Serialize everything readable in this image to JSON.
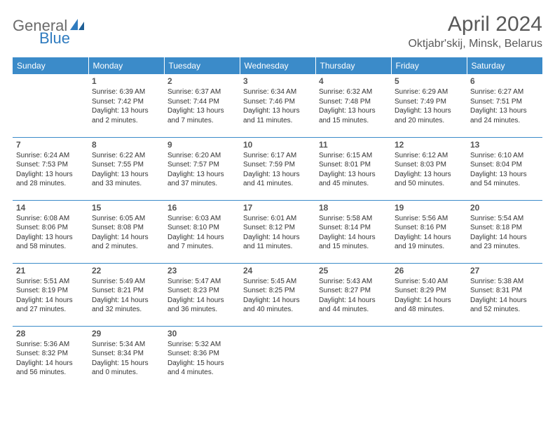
{
  "logo": {
    "part1": "General",
    "part2": "Blue"
  },
  "title": "April 2024",
  "location": "Oktjabr'skij, Minsk, Belarus",
  "colors": {
    "header_bg": "#3b8bc9",
    "header_text": "#ffffff",
    "body_text": "#333333",
    "title_text": "#595959",
    "logo_gray": "#6b6b6b",
    "logo_blue": "#2f7bbf",
    "rule": "#3b8bc9",
    "page_bg": "#ffffff"
  },
  "typography": {
    "title_fontsize": 30,
    "location_fontsize": 16,
    "dayheader_fontsize": 12,
    "daynum_fontsize": 12,
    "cell_fontsize": 10,
    "font_family": "Arial"
  },
  "headers": [
    "Sunday",
    "Monday",
    "Tuesday",
    "Wednesday",
    "Thursday",
    "Friday",
    "Saturday"
  ],
  "weeks": [
    [
      null,
      {
        "n": "1",
        "sr": "Sunrise: 6:39 AM",
        "ss": "Sunset: 7:42 PM",
        "d1": "Daylight: 13 hours",
        "d2": "and 2 minutes."
      },
      {
        "n": "2",
        "sr": "Sunrise: 6:37 AM",
        "ss": "Sunset: 7:44 PM",
        "d1": "Daylight: 13 hours",
        "d2": "and 7 minutes."
      },
      {
        "n": "3",
        "sr": "Sunrise: 6:34 AM",
        "ss": "Sunset: 7:46 PM",
        "d1": "Daylight: 13 hours",
        "d2": "and 11 minutes."
      },
      {
        "n": "4",
        "sr": "Sunrise: 6:32 AM",
        "ss": "Sunset: 7:48 PM",
        "d1": "Daylight: 13 hours",
        "d2": "and 15 minutes."
      },
      {
        "n": "5",
        "sr": "Sunrise: 6:29 AM",
        "ss": "Sunset: 7:49 PM",
        "d1": "Daylight: 13 hours",
        "d2": "and 20 minutes."
      },
      {
        "n": "6",
        "sr": "Sunrise: 6:27 AM",
        "ss": "Sunset: 7:51 PM",
        "d1": "Daylight: 13 hours",
        "d2": "and 24 minutes."
      }
    ],
    [
      {
        "n": "7",
        "sr": "Sunrise: 6:24 AM",
        "ss": "Sunset: 7:53 PM",
        "d1": "Daylight: 13 hours",
        "d2": "and 28 minutes."
      },
      {
        "n": "8",
        "sr": "Sunrise: 6:22 AM",
        "ss": "Sunset: 7:55 PM",
        "d1": "Daylight: 13 hours",
        "d2": "and 33 minutes."
      },
      {
        "n": "9",
        "sr": "Sunrise: 6:20 AM",
        "ss": "Sunset: 7:57 PM",
        "d1": "Daylight: 13 hours",
        "d2": "and 37 minutes."
      },
      {
        "n": "10",
        "sr": "Sunrise: 6:17 AM",
        "ss": "Sunset: 7:59 PM",
        "d1": "Daylight: 13 hours",
        "d2": "and 41 minutes."
      },
      {
        "n": "11",
        "sr": "Sunrise: 6:15 AM",
        "ss": "Sunset: 8:01 PM",
        "d1": "Daylight: 13 hours",
        "d2": "and 45 minutes."
      },
      {
        "n": "12",
        "sr": "Sunrise: 6:12 AM",
        "ss": "Sunset: 8:03 PM",
        "d1": "Daylight: 13 hours",
        "d2": "and 50 minutes."
      },
      {
        "n": "13",
        "sr": "Sunrise: 6:10 AM",
        "ss": "Sunset: 8:04 PM",
        "d1": "Daylight: 13 hours",
        "d2": "and 54 minutes."
      }
    ],
    [
      {
        "n": "14",
        "sr": "Sunrise: 6:08 AM",
        "ss": "Sunset: 8:06 PM",
        "d1": "Daylight: 13 hours",
        "d2": "and 58 minutes."
      },
      {
        "n": "15",
        "sr": "Sunrise: 6:05 AM",
        "ss": "Sunset: 8:08 PM",
        "d1": "Daylight: 14 hours",
        "d2": "and 2 minutes."
      },
      {
        "n": "16",
        "sr": "Sunrise: 6:03 AM",
        "ss": "Sunset: 8:10 PM",
        "d1": "Daylight: 14 hours",
        "d2": "and 7 minutes."
      },
      {
        "n": "17",
        "sr": "Sunrise: 6:01 AM",
        "ss": "Sunset: 8:12 PM",
        "d1": "Daylight: 14 hours",
        "d2": "and 11 minutes."
      },
      {
        "n": "18",
        "sr": "Sunrise: 5:58 AM",
        "ss": "Sunset: 8:14 PM",
        "d1": "Daylight: 14 hours",
        "d2": "and 15 minutes."
      },
      {
        "n": "19",
        "sr": "Sunrise: 5:56 AM",
        "ss": "Sunset: 8:16 PM",
        "d1": "Daylight: 14 hours",
        "d2": "and 19 minutes."
      },
      {
        "n": "20",
        "sr": "Sunrise: 5:54 AM",
        "ss": "Sunset: 8:18 PM",
        "d1": "Daylight: 14 hours",
        "d2": "and 23 minutes."
      }
    ],
    [
      {
        "n": "21",
        "sr": "Sunrise: 5:51 AM",
        "ss": "Sunset: 8:19 PM",
        "d1": "Daylight: 14 hours",
        "d2": "and 27 minutes."
      },
      {
        "n": "22",
        "sr": "Sunrise: 5:49 AM",
        "ss": "Sunset: 8:21 PM",
        "d1": "Daylight: 14 hours",
        "d2": "and 32 minutes."
      },
      {
        "n": "23",
        "sr": "Sunrise: 5:47 AM",
        "ss": "Sunset: 8:23 PM",
        "d1": "Daylight: 14 hours",
        "d2": "and 36 minutes."
      },
      {
        "n": "24",
        "sr": "Sunrise: 5:45 AM",
        "ss": "Sunset: 8:25 PM",
        "d1": "Daylight: 14 hours",
        "d2": "and 40 minutes."
      },
      {
        "n": "25",
        "sr": "Sunrise: 5:43 AM",
        "ss": "Sunset: 8:27 PM",
        "d1": "Daylight: 14 hours",
        "d2": "and 44 minutes."
      },
      {
        "n": "26",
        "sr": "Sunrise: 5:40 AM",
        "ss": "Sunset: 8:29 PM",
        "d1": "Daylight: 14 hours",
        "d2": "and 48 minutes."
      },
      {
        "n": "27",
        "sr": "Sunrise: 5:38 AM",
        "ss": "Sunset: 8:31 PM",
        "d1": "Daylight: 14 hours",
        "d2": "and 52 minutes."
      }
    ],
    [
      {
        "n": "28",
        "sr": "Sunrise: 5:36 AM",
        "ss": "Sunset: 8:32 PM",
        "d1": "Daylight: 14 hours",
        "d2": "and 56 minutes."
      },
      {
        "n": "29",
        "sr": "Sunrise: 5:34 AM",
        "ss": "Sunset: 8:34 PM",
        "d1": "Daylight: 15 hours",
        "d2": "and 0 minutes."
      },
      {
        "n": "30",
        "sr": "Sunrise: 5:32 AM",
        "ss": "Sunset: 8:36 PM",
        "d1": "Daylight: 15 hours",
        "d2": "and 4 minutes."
      },
      null,
      null,
      null,
      null
    ]
  ]
}
